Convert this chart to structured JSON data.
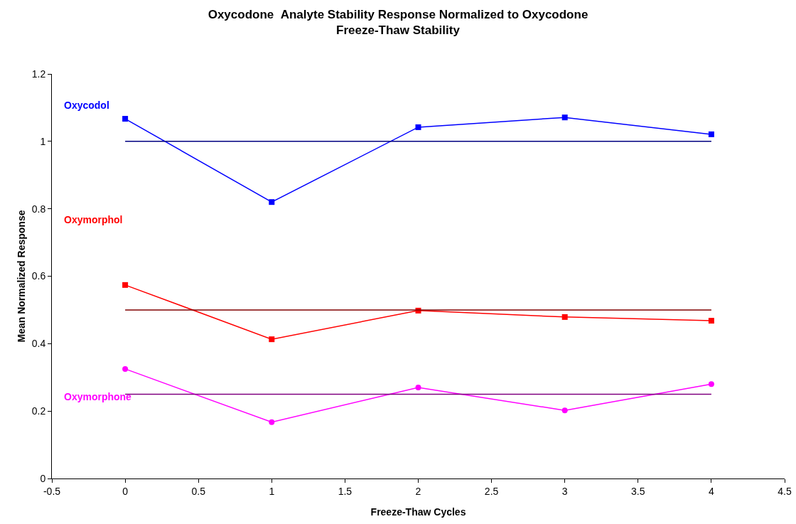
{
  "chart_data": {
    "type": "line",
    "title": "Oxycodone  Analyte Stability Response Normalized to Oxycodone",
    "subtitle": "Freeze-Thaw Stability",
    "xlabel": "Freeze-Thaw Cycles",
    "ylabel": "Mean Normalized Response",
    "x": [
      0,
      1,
      2,
      3,
      4
    ],
    "series": [
      {
        "name": "Oxycodol",
        "color": "#0000ff",
        "marker": "square",
        "values": [
          1.067,
          0.82,
          1.042,
          1.071,
          1.021
        ]
      },
      {
        "name": "Oxymorphol",
        "color": "#ff0000",
        "marker": "square",
        "values": [
          0.574,
          0.413,
          0.498,
          0.479,
          0.468
        ]
      },
      {
        "name": "Oxymorphone",
        "color": "#ff00ff",
        "marker": "circle",
        "values": [
          0.325,
          0.167,
          0.27,
          0.202,
          0.28
        ]
      },
      {
        "color": "#000080",
        "marker": "none",
        "values": [
          1,
          1,
          1,
          1,
          1
        ]
      },
      {
        "color": "#800000",
        "marker": "none",
        "values": [
          0.5,
          0.5,
          0.5,
          0.5,
          0.5
        ]
      },
      {
        "color": "#800080",
        "marker": "none",
        "values": [
          0.25,
          0.25,
          0.25,
          0.25,
          0.25
        ]
      }
    ],
    "xlim": [
      -0.5,
      4.5
    ],
    "xticks": [
      -0.5,
      0,
      0.5,
      1,
      1.5,
      2,
      2.5,
      3,
      3.5,
      4,
      4.5
    ],
    "ylim": [
      0,
      1.2
    ],
    "yticks": [
      0,
      0.2,
      0.4,
      0.6,
      0.8,
      1,
      1.2
    ],
    "grid": false,
    "legend": false
  }
}
